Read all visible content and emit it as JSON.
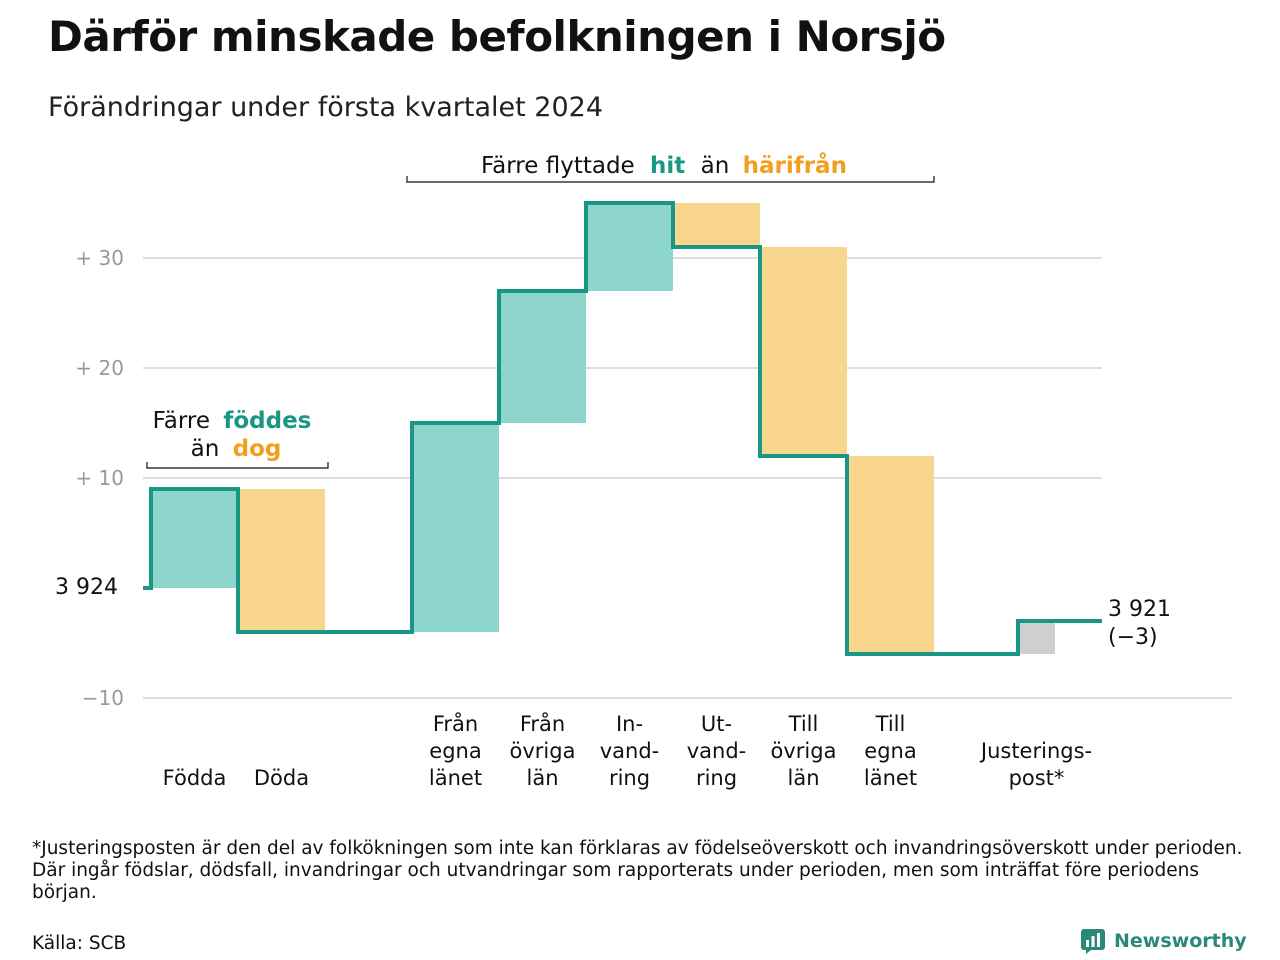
{
  "title": "Därför minskade befolkningen i Norsjö",
  "subtitle": "Förändringar under första kvartalet 2024",
  "colors": {
    "increase": "#8dd5cd",
    "decrease": "#f9d68e",
    "adjustment": "#cfcfcf",
    "line": "#1a9784",
    "grid": "#dddddd",
    "teal_text": "#1a9784",
    "orange_text": "#f0a01e"
  },
  "annotations": {
    "births": {
      "line1": "Färre",
      "line1_hl": "föddes",
      "line2": "än",
      "line2_hl": "dog"
    },
    "moves": {
      "prefix": "Färre flyttade",
      "hl1": "hit",
      "mid": "än",
      "hl2": "härifrån"
    }
  },
  "start_label": "3 924",
  "end_label": {
    "value": "3 921",
    "change": "(−3)"
  },
  "chart_data": {
    "type": "waterfall",
    "title": "Därför minskade befolkningen i Norsjö",
    "subtitle": "Förändringar under första kvartalet 2024",
    "start_value": 3924,
    "end_value": 3921,
    "ylim": [
      -10,
      35
    ],
    "yticks": [
      {
        "value": 30,
        "label": "+  30"
      },
      {
        "value": 20,
        "label": "+  20"
      },
      {
        "value": 10,
        "label": "+  10"
      },
      {
        "value": -10,
        "label": "−10"
      }
    ],
    "categories": [
      {
        "label": [
          "Födda"
        ],
        "change": 9,
        "kind": "increase"
      },
      {
        "label": [
          "Döda"
        ],
        "change": -13,
        "kind": "decrease"
      },
      {
        "label": [
          "Från",
          "egna",
          "länet"
        ],
        "change": 19,
        "kind": "increase"
      },
      {
        "label": [
          "Från",
          "övriga",
          "län"
        ],
        "change": 12,
        "kind": "increase"
      },
      {
        "label": [
          "In-",
          "vand-",
          "ring"
        ],
        "change": 8,
        "kind": "increase"
      },
      {
        "label": [
          "Ut-",
          "vand-",
          "ring"
        ],
        "change": -4,
        "kind": "decrease"
      },
      {
        "label": [
          "Till",
          "övriga",
          "län"
        ],
        "change": -19,
        "kind": "decrease"
      },
      {
        "label": [
          "Till",
          "egna",
          "länet"
        ],
        "change": -18,
        "kind": "decrease"
      },
      {
        "label": [
          "Justerings-",
          "post*"
        ],
        "change": 3,
        "kind": "adjustment"
      }
    ],
    "grid": true
  },
  "footnote": "*Justeringsposten är den del av folkökningen som inte kan förklaras av födelseöverskott och invandringsöverskott under perioden. Där ingår födslar, dödsfall, invandringar och utvandringar som rapporterats under perioden, men som inträffat före periodens början.",
  "source": "Källa: SCB",
  "logo_text": "Newsworthy"
}
